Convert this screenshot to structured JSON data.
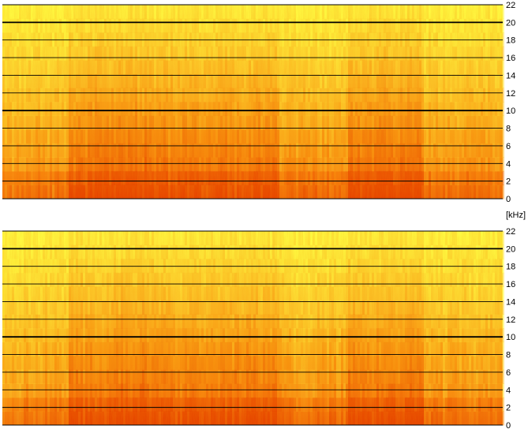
{
  "chart_data": [
    {
      "type": "heatmap",
      "channel": "upper",
      "ylim": [
        0,
        22
      ],
      "yticks": [
        "0",
        "2",
        "4",
        "6",
        "8",
        "10",
        "12",
        "14",
        "16",
        "18",
        "20",
        "22"
      ],
      "ytick_values": [
        0,
        2,
        4,
        6,
        8,
        10,
        12,
        14,
        16,
        18,
        20,
        22
      ],
      "bold_lines": [
        10,
        20
      ],
      "grid": true,
      "colors": {
        "low": "#ffff40",
        "mid": "#f8a010",
        "high": "#e03c00"
      }
    },
    {
      "type": "heatmap",
      "channel": "lower",
      "ylim": [
        0,
        22
      ],
      "yticks": [
        "0",
        "2",
        "4",
        "6",
        "8",
        "10",
        "12",
        "14",
        "16",
        "18",
        "20",
        "22"
      ],
      "ytick_values": [
        0,
        2,
        4,
        6,
        8,
        10,
        12,
        14,
        16,
        18,
        20,
        22
      ],
      "bold_lines": [
        10,
        20
      ],
      "grid": true,
      "colors": {
        "low": "#ffff40",
        "mid": "#f8a010",
        "high": "#e03c00"
      }
    }
  ],
  "unit_label": "[kHz]"
}
